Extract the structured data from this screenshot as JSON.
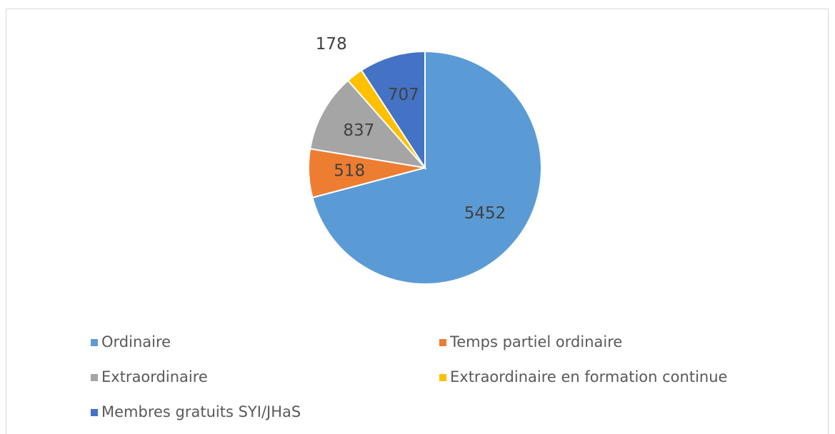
{
  "chart_data": {
    "type": "pie",
    "categories": [
      "Ordinaire",
      "Temps partiel ordinaire",
      "Extraordinaire",
      "Extraordinaire en formation continue",
      "Membres gratuits SYI/JHaS"
    ],
    "values": [
      5452,
      518,
      837,
      178,
      707
    ],
    "colors": [
      "#5b9bd5",
      "#ed7d31",
      "#a5a5a5",
      "#ffc000",
      "#4472c4"
    ],
    "legend": "bottom"
  }
}
